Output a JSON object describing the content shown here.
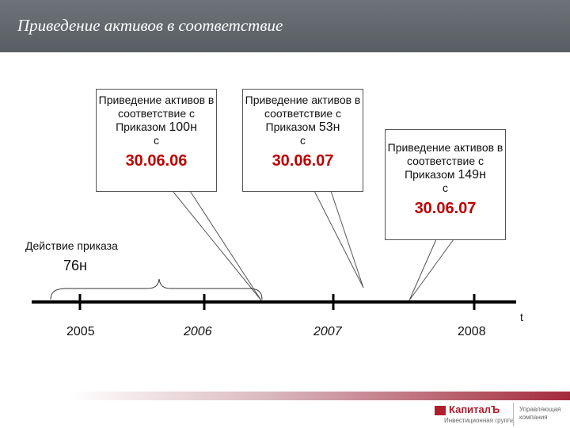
{
  "header": {
    "title": "Приведение активов в соответствие"
  },
  "callouts": [
    {
      "text": "Приведение активов в соответствие с Приказом",
      "order_number": "100н",
      "suffix": "с",
      "date": "30.06.06"
    },
    {
      "text": "Приведение активов в соответствие с Приказом",
      "order_number": "53н",
      "suffix": "с",
      "date": "30.06.07"
    },
    {
      "text": "Приведение активов в соответствие с Приказом",
      "order_number": "149н",
      "suffix": "с",
      "date": "30.06.07"
    }
  ],
  "action": {
    "label": "Действие приказа",
    "order": "76н"
  },
  "timeline": {
    "years": [
      "2005",
      "2006",
      "2007",
      "2008"
    ],
    "axis_label": "t"
  },
  "footer": {
    "brand": "КапиталЪ",
    "brand_sub": "Инвестиционная группа",
    "company_type": "Управляющая компания"
  },
  "colors": {
    "header_bg": "#595e63",
    "accent_red": "#c00000",
    "brand_red": "#b01e2e"
  }
}
